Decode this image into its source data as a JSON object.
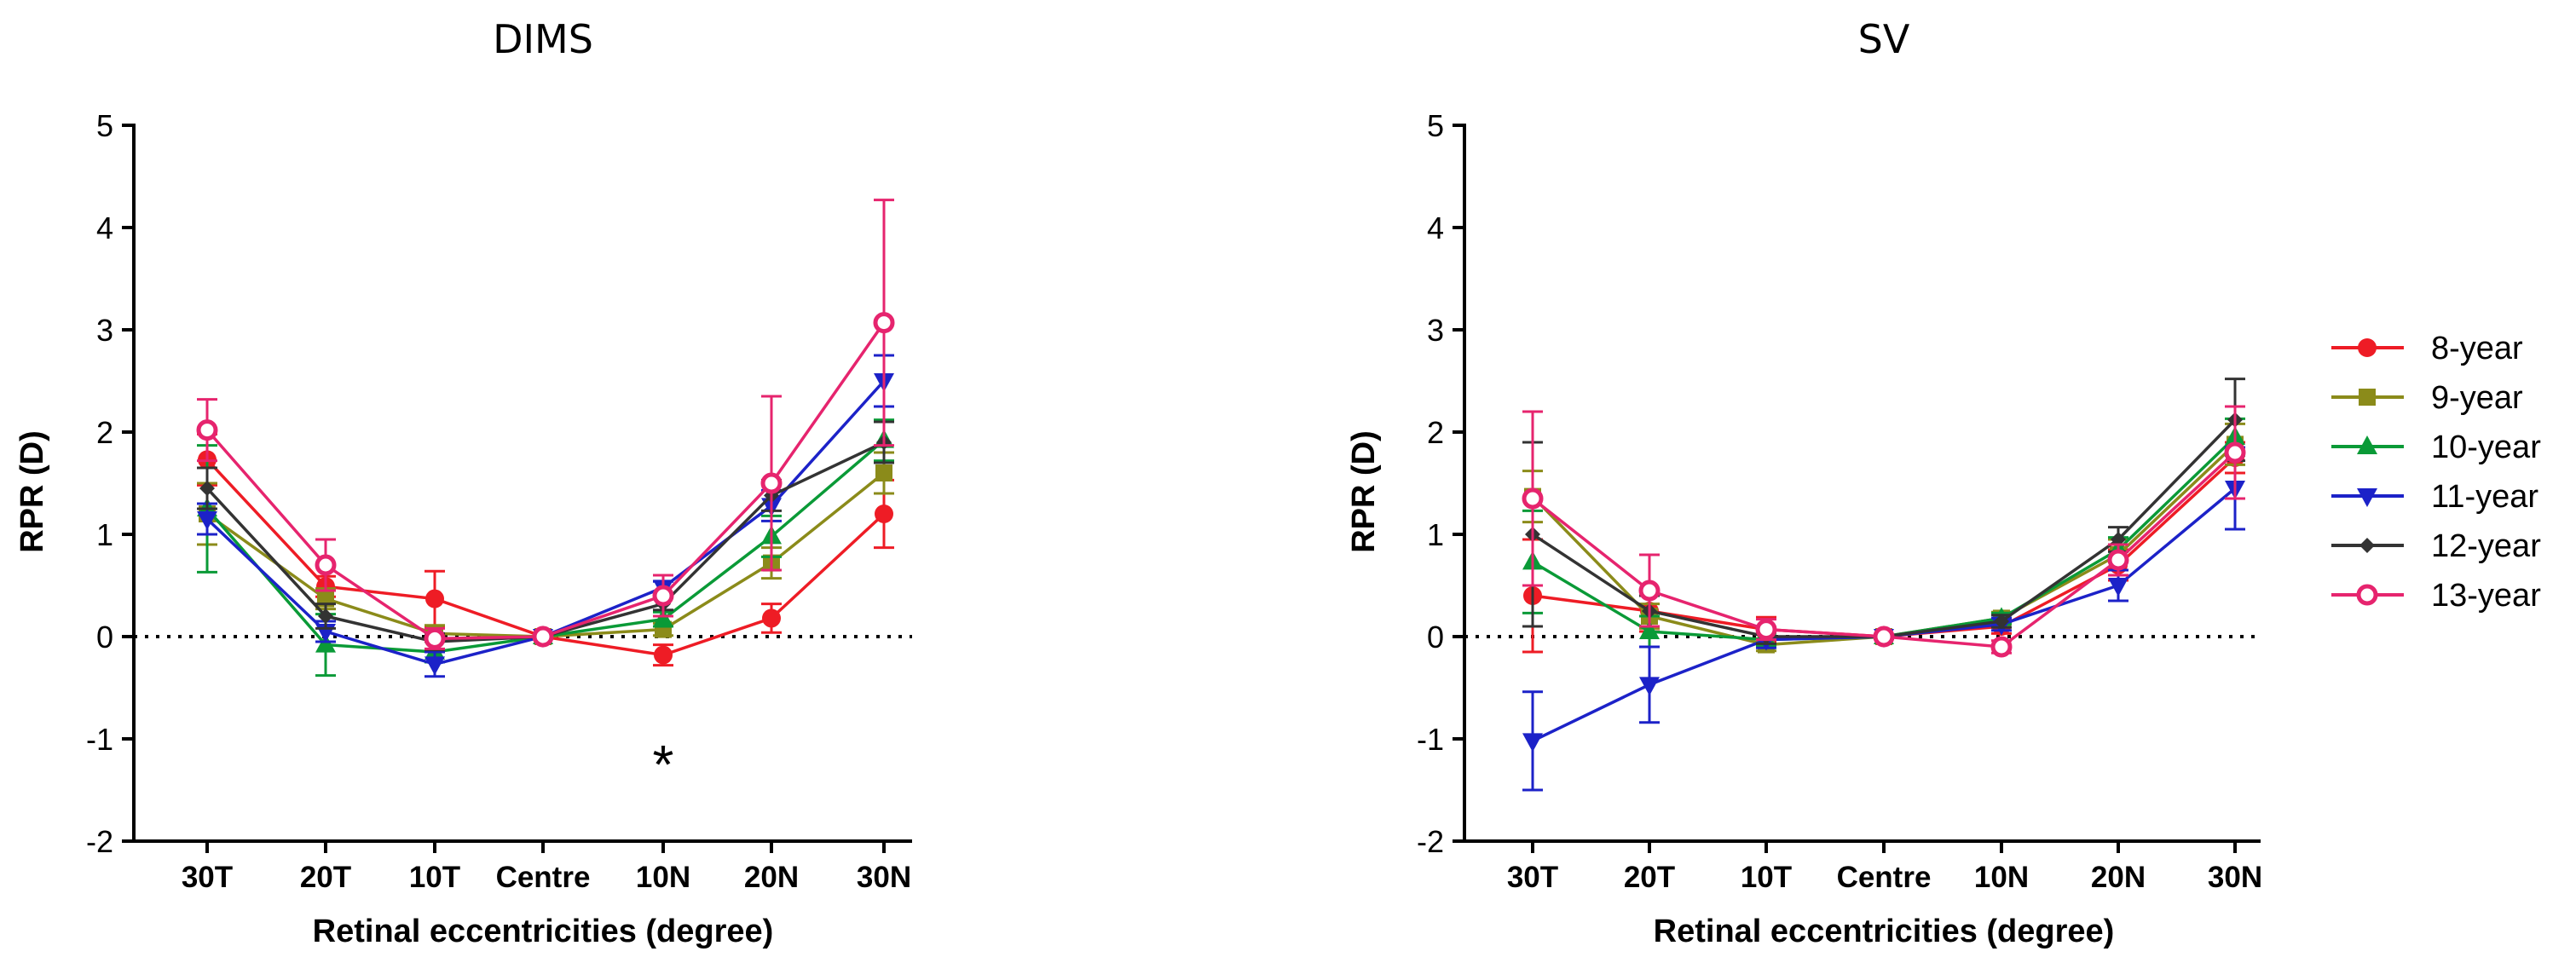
{
  "chart_data": [
    {
      "type": "line",
      "title": "DIMS",
      "xlabel": "Retinal eccentricities (degree)",
      "ylabel": "RPR (D)",
      "categories": [
        "30T",
        "20T",
        "10T",
        "Centre",
        "10N",
        "20N",
        "30N"
      ],
      "ylim": [
        -2,
        5
      ],
      "yticks": [
        -2,
        -1,
        0,
        1,
        2,
        3,
        4,
        5
      ],
      "reference_line": 0,
      "annotation": {
        "text": "*",
        "category": "10N",
        "y": -1.1
      },
      "series": [
        {
          "name": "8-year",
          "color": "#ee1c25",
          "marker": "circle",
          "values": [
            1.73,
            0.49,
            0.37,
            0.0,
            -0.18,
            0.18,
            1.2
          ],
          "errors": [
            0.25,
            0.1,
            0.27,
            0.02,
            0.1,
            0.14,
            0.33
          ]
        },
        {
          "name": "9-year",
          "color": "#8b8b1a",
          "marker": "square",
          "values": [
            1.2,
            0.37,
            0.03,
            0.0,
            0.07,
            0.72,
            1.6
          ],
          "errors": [
            0.3,
            0.1,
            0.08,
            0.02,
            0.06,
            0.15,
            0.2
          ]
        },
        {
          "name": "10-year",
          "color": "#0a9a37",
          "marker": "triangle-up",
          "values": [
            1.25,
            -0.08,
            -0.15,
            0.0,
            0.17,
            0.98,
            1.92
          ],
          "errors": [
            0.62,
            0.3,
            0.1,
            0.02,
            0.07,
            0.2,
            0.2
          ]
        },
        {
          "name": "11-year",
          "color": "#1c22c8",
          "marker": "triangle-down",
          "values": [
            1.15,
            0.05,
            -0.27,
            0.0,
            0.48,
            1.28,
            2.5
          ],
          "errors": [
            0.15,
            0.1,
            0.12,
            0.02,
            0.06,
            0.15,
            0.25
          ]
        },
        {
          "name": "12-year",
          "color": "#333333",
          "marker": "diamond",
          "values": [
            1.45,
            0.2,
            -0.05,
            0.0,
            0.32,
            1.38,
            1.9
          ],
          "errors": [
            0.2,
            0.12,
            0.08,
            0.02,
            0.06,
            0.15,
            0.2
          ]
        },
        {
          "name": "13-year",
          "color": "#e6246e",
          "marker": "open-circle",
          "values": [
            2.02,
            0.7,
            -0.02,
            0.0,
            0.4,
            1.5,
            3.07
          ],
          "errors": [
            0.3,
            0.25,
            0.1,
            0.02,
            0.2,
            0.85,
            1.2
          ]
        }
      ]
    },
    {
      "type": "line",
      "title": "SV",
      "xlabel": "Retinal eccentricities (degree)",
      "ylabel": "RPR (D)",
      "categories": [
        "30T",
        "20T",
        "10T",
        "Centre",
        "10N",
        "20N",
        "30N"
      ],
      "ylim": [
        -2,
        5
      ],
      "yticks": [
        -2,
        -1,
        0,
        1,
        2,
        3,
        4,
        5
      ],
      "reference_line": 0,
      "series": [
        {
          "name": "8-year",
          "color": "#ee1c25",
          "marker": "circle",
          "values": [
            0.4,
            0.25,
            0.07,
            0.0,
            0.1,
            0.7,
            1.75
          ],
          "errors": [
            0.55,
            0.2,
            0.12,
            0.02,
            0.07,
            0.15,
            0.15
          ]
        },
        {
          "name": "9-year",
          "color": "#8b8b1a",
          "marker": "square",
          "values": [
            1.37,
            0.2,
            -0.08,
            0.0,
            0.18,
            0.8,
            1.88
          ],
          "errors": [
            0.25,
            0.12,
            0.06,
            0.02,
            0.06,
            0.15,
            0.2
          ]
        },
        {
          "name": "10-year",
          "color": "#0a9a37",
          "marker": "triangle-up",
          "values": [
            0.73,
            0.05,
            -0.03,
            0.0,
            0.18,
            0.85,
            1.95
          ],
          "errors": [
            0.5,
            0.15,
            0.06,
            0.02,
            0.05,
            0.12,
            0.18
          ]
        },
        {
          "name": "11-year",
          "color": "#1c22c8",
          "marker": "triangle-down",
          "values": [
            -1.02,
            -0.47,
            -0.03,
            0.0,
            0.12,
            0.5,
            1.45
          ],
          "errors": [
            0.48,
            0.37,
            0.08,
            0.02,
            0.06,
            0.15,
            0.4
          ]
        },
        {
          "name": "12-year",
          "color": "#333333",
          "marker": "diamond",
          "values": [
            1.0,
            0.25,
            0.0,
            0.0,
            0.15,
            0.95,
            2.12
          ],
          "errors": [
            0.9,
            0.15,
            0.07,
            0.02,
            0.06,
            0.12,
            0.4
          ]
        },
        {
          "name": "13-year",
          "color": "#e6246e",
          "marker": "open-circle",
          "values": [
            1.35,
            0.45,
            0.07,
            0.0,
            -0.1,
            0.75,
            1.8
          ],
          "errors": [
            0.85,
            0.35,
            0.1,
            0.02,
            0.06,
            0.15,
            0.45
          ]
        }
      ]
    }
  ],
  "legend": {
    "placement": "right",
    "items": [
      {
        "label": "8-year",
        "color": "#ee1c25",
        "marker": "circle"
      },
      {
        "label": "9-year",
        "color": "#8b8b1a",
        "marker": "square"
      },
      {
        "label": "10-year",
        "color": "#0a9a37",
        "marker": "triangle-up"
      },
      {
        "label": "11-year",
        "color": "#1c22c8",
        "marker": "triangle-down"
      },
      {
        "label": "12-year",
        "color": "#333333",
        "marker": "diamond"
      },
      {
        "label": "13-year",
        "color": "#e6246e",
        "marker": "open-circle"
      }
    ]
  }
}
